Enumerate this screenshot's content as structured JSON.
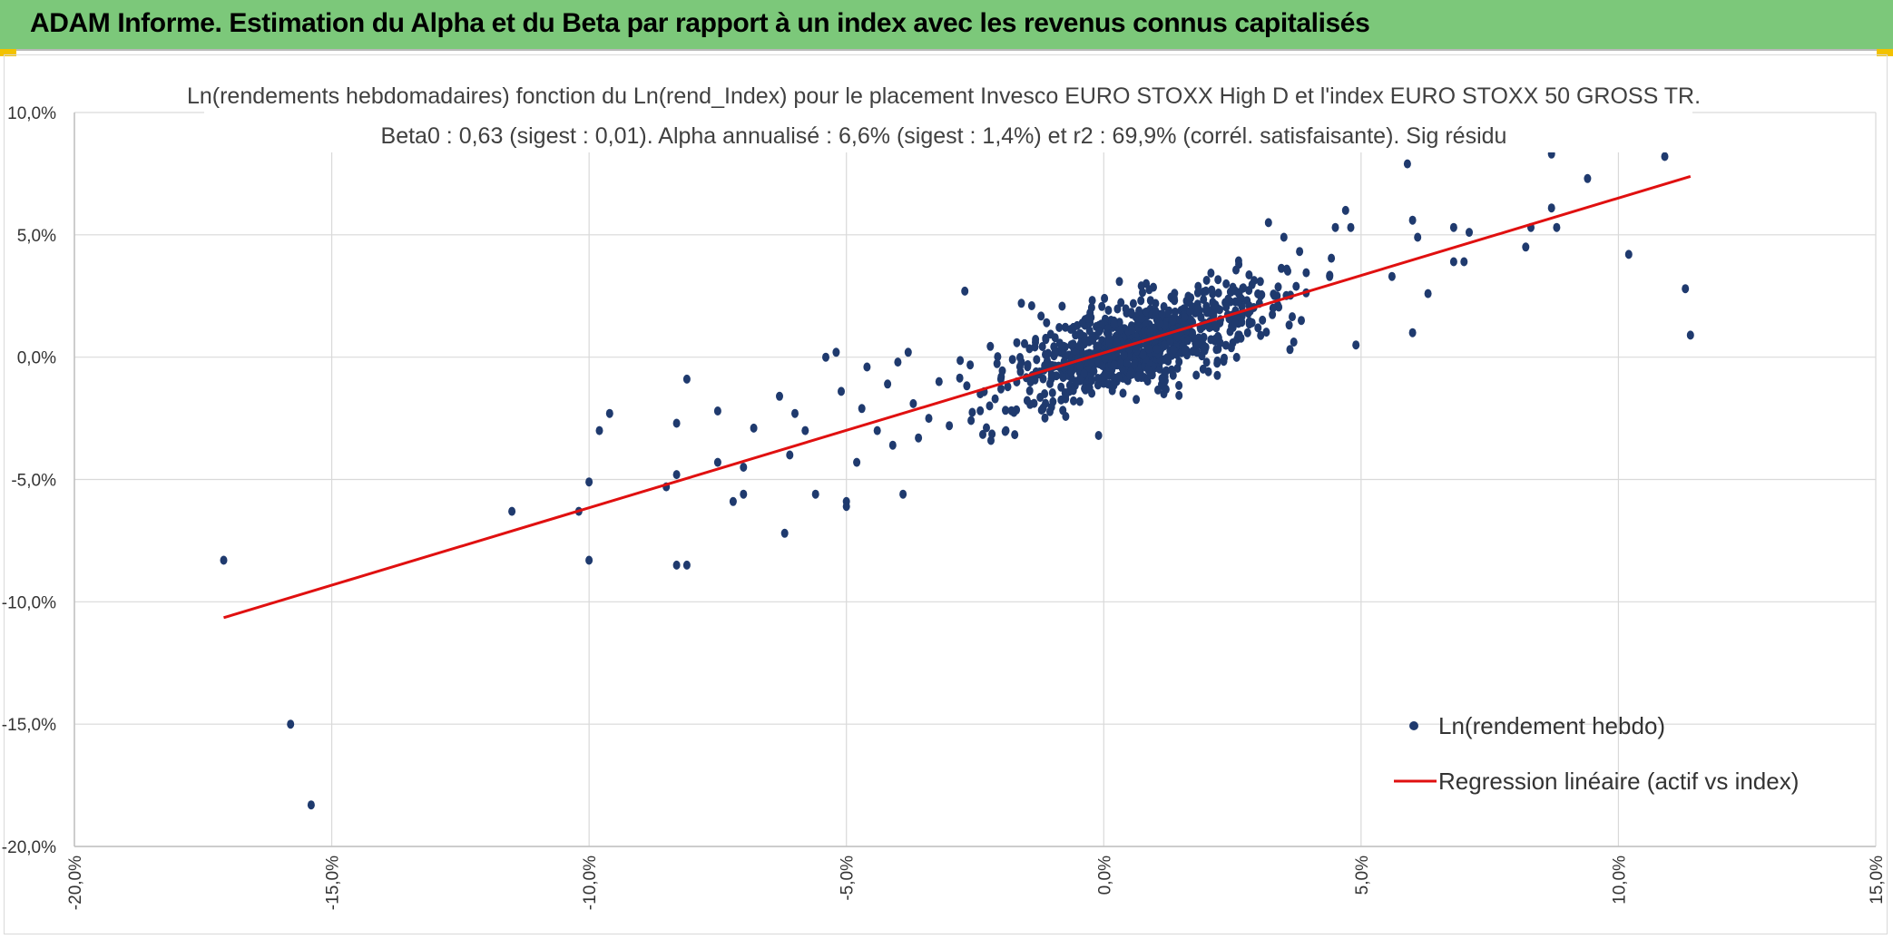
{
  "header": {
    "title": "ADAM Informe. Estimation du Alpha et du Beta par rapport à un index avec les revenus connus capitalisés"
  },
  "colors": {
    "header_bg": "#7cc87a",
    "points": "#1f3a6e",
    "regression": "#e01010",
    "grid": "#d9d9d9"
  },
  "chart_data": {
    "type": "scatter",
    "title_line1": "Ln(rendements hebdomadaires) fonction du Ln(rend_Index) pour le placement Invesco EURO STOXX High D et l'index EURO STOXX 50 GROSS TR.",
    "title_line2": "Beta0 : 0,63 (sigest : 0,01). Alpha annualisé : 6,6% (sigest : 1,4%) et r2 : 69,9% (corrél. satisfaisante). Sig résidu",
    "xlim": [
      -20,
      15
    ],
    "ylim": [
      -20,
      10
    ],
    "x_ticks": [
      -20,
      -15,
      -10,
      -5,
      0,
      5,
      10,
      15
    ],
    "y_ticks": [
      -20,
      -15,
      -10,
      -5,
      0,
      5,
      10
    ],
    "x_tick_labels": [
      "-20,0%",
      "-15,0%",
      "-10,0%",
      "-5,0%",
      "0,0%",
      "5,0%",
      "10,0%",
      "15,0%"
    ],
    "y_tick_labels": [
      "-20,0%",
      "-15,0%",
      "-10,0%",
      "-5,0%",
      "0,0%",
      "5,0%",
      "10,0%"
    ],
    "grid": true,
    "series": [
      {
        "name": "Ln(rendement hebdo)",
        "kind": "points",
        "cluster": {
          "count": 900,
          "x_mean": 0.6,
          "x_sd": 1.3,
          "beta": 0.63,
          "intercept": 0.1,
          "resid_sd": 0.9
        },
        "points": [
          [
            -17.1,
            -8.3
          ],
          [
            -15.8,
            -15.0
          ],
          [
            -15.4,
            -18.3
          ],
          [
            -11.5,
            -6.3
          ],
          [
            -10.2,
            -6.3
          ],
          [
            -10.0,
            -8.3
          ],
          [
            -10.0,
            -5.1
          ],
          [
            -9.8,
            -3.0
          ],
          [
            -9.6,
            -2.3
          ],
          [
            -8.5,
            -5.3
          ],
          [
            -8.3,
            -2.7
          ],
          [
            -8.3,
            -4.8
          ],
          [
            -8.3,
            -8.5
          ],
          [
            -8.1,
            -8.5
          ],
          [
            -8.1,
            -0.9
          ],
          [
            -7.5,
            -4.3
          ],
          [
            -7.5,
            -2.2
          ],
          [
            -7.2,
            -5.9
          ],
          [
            -7.0,
            -4.5
          ],
          [
            -7.0,
            -5.6
          ],
          [
            -6.8,
            -2.9
          ],
          [
            -6.3,
            -1.6
          ],
          [
            -6.2,
            -7.2
          ],
          [
            -6.1,
            -4.0
          ],
          [
            -6.0,
            -2.3
          ],
          [
            -5.8,
            -3.0
          ],
          [
            -5.6,
            -5.6
          ],
          [
            -5.4,
            0.0
          ],
          [
            -5.2,
            0.2
          ],
          [
            -5.1,
            -1.4
          ],
          [
            -5.0,
            -5.9
          ],
          [
            -5.0,
            -6.1
          ],
          [
            -4.8,
            -4.3
          ],
          [
            -4.7,
            -2.1
          ],
          [
            -4.6,
            -0.4
          ],
          [
            -4.4,
            -3.0
          ],
          [
            -4.2,
            -1.1
          ],
          [
            -4.1,
            -3.6
          ],
          [
            -4.0,
            -0.2
          ],
          [
            -3.9,
            -5.6
          ],
          [
            -3.8,
            0.2
          ],
          [
            -3.7,
            -1.9
          ],
          [
            -3.6,
            -3.3
          ],
          [
            -3.4,
            -2.5
          ],
          [
            -3.2,
            -1.0
          ],
          [
            -3.0,
            -2.8
          ],
          [
            -2.7,
            2.7
          ],
          [
            -2.4,
            -1.5
          ],
          [
            -2.0,
            -0.9
          ],
          [
            -1.9,
            -3.0
          ],
          [
            -1.6,
            2.2
          ],
          [
            -1.4,
            2.1
          ],
          [
            -0.1,
            -3.2
          ],
          [
            3.2,
            5.5
          ],
          [
            3.5,
            4.9
          ],
          [
            4.5,
            5.3
          ],
          [
            4.7,
            6.0
          ],
          [
            4.8,
            5.3
          ],
          [
            4.9,
            0.5
          ],
          [
            5.6,
            3.3
          ],
          [
            5.9,
            7.9
          ],
          [
            6.0,
            1.0
          ],
          [
            6.0,
            5.6
          ],
          [
            6.1,
            4.9
          ],
          [
            6.3,
            2.6
          ],
          [
            6.8,
            5.3
          ],
          [
            6.8,
            3.9
          ],
          [
            7.0,
            3.9
          ],
          [
            7.1,
            5.1
          ],
          [
            8.2,
            4.5
          ],
          [
            8.3,
            5.3
          ],
          [
            8.7,
            8.3
          ],
          [
            8.7,
            6.1
          ],
          [
            8.8,
            5.3
          ],
          [
            9.4,
            7.3
          ],
          [
            10.2,
            4.2
          ],
          [
            10.9,
            8.2
          ],
          [
            11.3,
            2.8
          ],
          [
            11.4,
            0.9
          ]
        ]
      },
      {
        "name": "Regression linéaire (actif vs index)",
        "kind": "line",
        "x": [
          -17.1,
          11.4
        ],
        "y": [
          -10.65,
          7.39
        ]
      }
    ],
    "legend": {
      "position": "bottom-right"
    }
  }
}
